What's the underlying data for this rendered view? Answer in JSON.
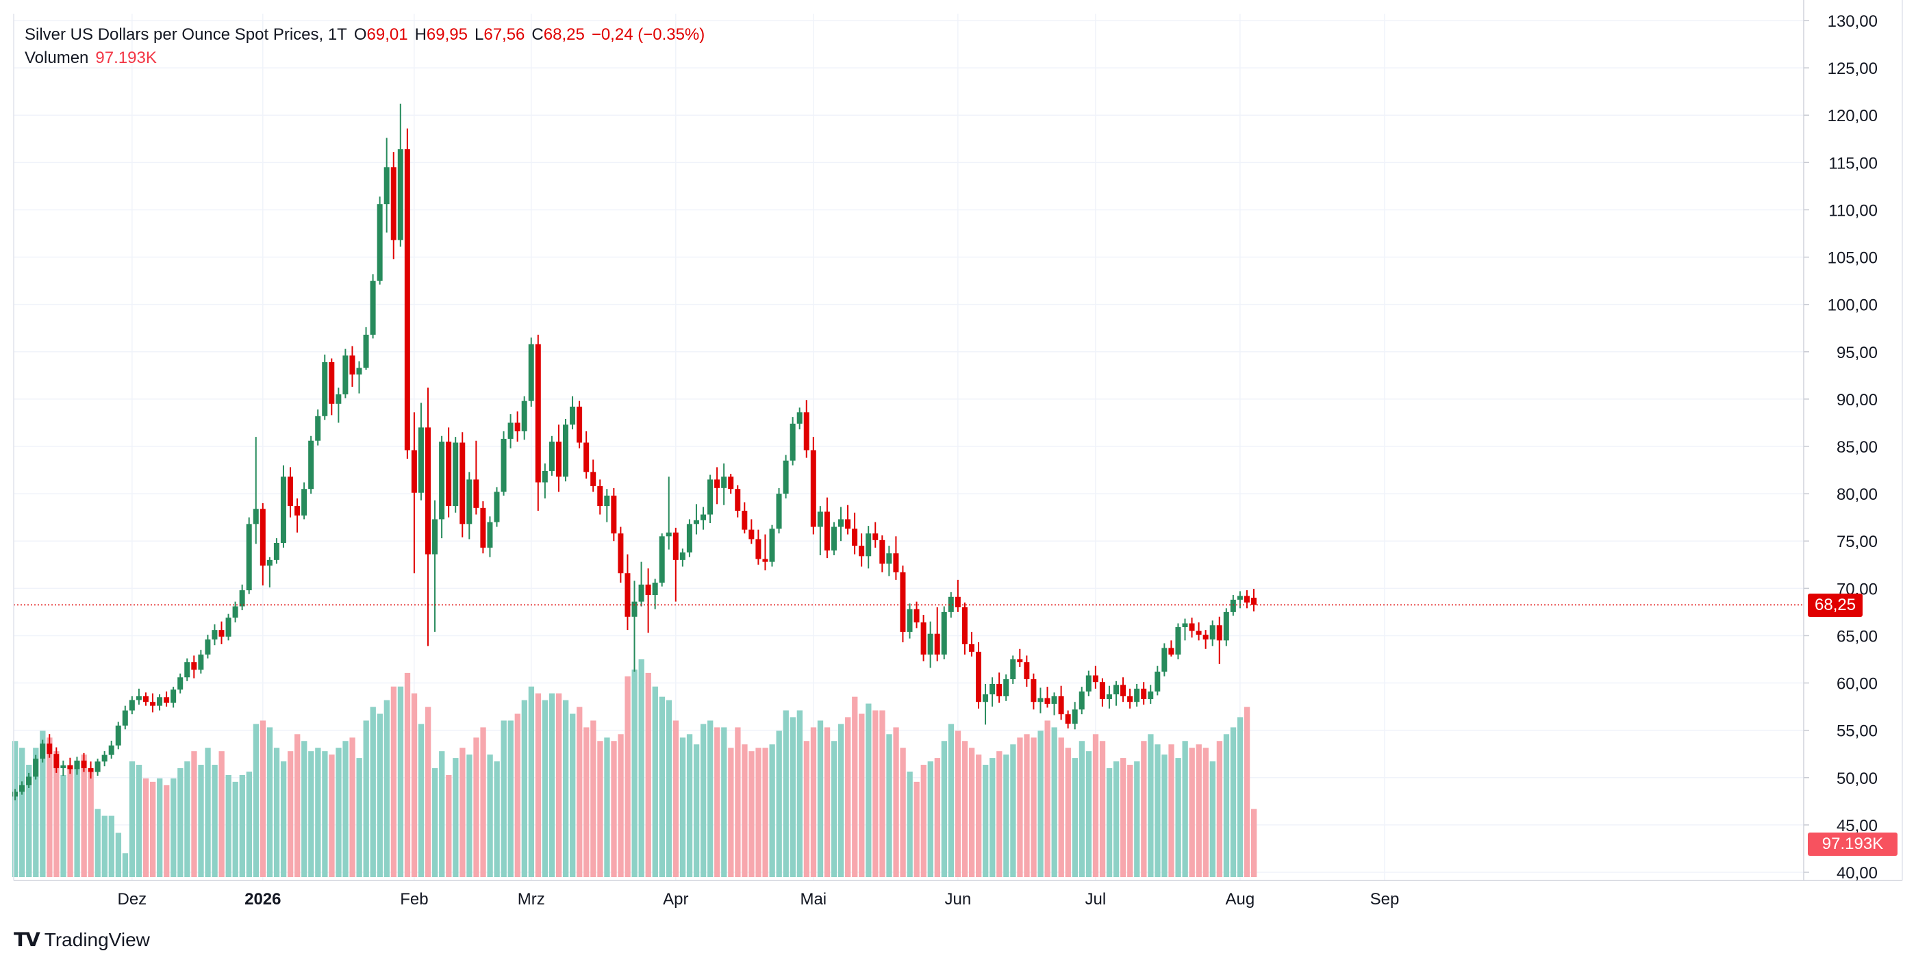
{
  "legend": {
    "symbol": "Silver US Dollars per Ounce Spot Prices, 1T",
    "o_label": "O",
    "o_value": "69,01",
    "h_label": "H",
    "h_value": "69,95",
    "l_label": "L",
    "l_value": "67,56",
    "c_label": "C",
    "c_value": "68,25",
    "change": "−0,24 (−0.35%)",
    "volume_label": "Volumen",
    "volume_value": "97.193K"
  },
  "last_price_label": "68,25",
  "volume_tag_label": "97.193K",
  "brand": {
    "logo": "tradingview-logo-icon",
    "name": "TradingView"
  },
  "colors": {
    "up": "#26a69a",
    "up_candle": "#278b5c",
    "down": "#e00000",
    "up_volume": "#8dd1c6",
    "down_volume": "#f7a7ad",
    "grid": "#f0f3fa",
    "axis_text": "#131722"
  },
  "chart_data": {
    "type": "candlestick",
    "title": "Silver US Dollars per Ounce Spot Prices, 1T",
    "y_ticks": [
      "130,00",
      "125,00",
      "120,00",
      "115,00",
      "110,00",
      "105,00",
      "100,00",
      "95,00",
      "90,00",
      "85,00",
      "80,00",
      "75,00",
      "70,00",
      "65,00",
      "60,00",
      "55,00",
      "50,00",
      "45,00",
      "40,00"
    ],
    "ylim": [
      40,
      130
    ],
    "x_ticks": [
      {
        "label": "Dez",
        "day": 17,
        "bold": false
      },
      {
        "label": "2026",
        "day": 36,
        "bold": true
      },
      {
        "label": "Feb",
        "day": 58,
        "bold": false
      },
      {
        "label": "Mrz",
        "day": 75,
        "bold": false
      },
      {
        "label": "Apr",
        "day": 96,
        "bold": false
      },
      {
        "label": "Mai",
        "day": 116,
        "bold": false
      },
      {
        "label": "Jun",
        "day": 137,
        "bold": false
      },
      {
        "label": "Jul",
        "day": 157,
        "bold": false
      },
      {
        "label": "Aug",
        "day": 178,
        "bold": false
      },
      {
        "label": "Sep",
        "day": 199,
        "bold": false
      }
    ],
    "xlim": [
      0,
      213
    ],
    "last_price": 68.25,
    "volume_last": "97.193K",
    "volume_ylim": [
      0,
      100
    ],
    "candles": [
      [
        48.0,
        48.8,
        47.6,
        48.5,
        40
      ],
      [
        48.5,
        49.6,
        48.2,
        49.2,
        38
      ],
      [
        49.2,
        50.5,
        48.9,
        50.1,
        33
      ],
      [
        50.1,
        52.4,
        49.8,
        52.0,
        38
      ],
      [
        52.0,
        54.0,
        51.6,
        53.6,
        43
      ],
      [
        53.6,
        54.6,
        52.1,
        52.5,
        41
      ],
      [
        52.5,
        53.2,
        50.5,
        51.0,
        37
      ],
      [
        51.0,
        51.8,
        50.2,
        51.3,
        30
      ],
      [
        51.3,
        52.1,
        50.4,
        50.9,
        33
      ],
      [
        50.9,
        52.2,
        50.3,
        51.8,
        34
      ],
      [
        51.8,
        52.6,
        50.6,
        51.0,
        36
      ],
      [
        51.0,
        51.7,
        49.9,
        50.6,
        31
      ],
      [
        50.6,
        52.0,
        50.2,
        51.7,
        20
      ],
      [
        51.7,
        52.8,
        51.2,
        52.4,
        18
      ],
      [
        52.4,
        53.9,
        52.0,
        53.4,
        18
      ],
      [
        53.4,
        55.9,
        53.0,
        55.5,
        13
      ],
      [
        55.5,
        57.6,
        55.1,
        57.1,
        7
      ],
      [
        57.1,
        58.6,
        56.7,
        58.2,
        34
      ],
      [
        58.2,
        59.4,
        57.7,
        58.6,
        33
      ],
      [
        58.6,
        59.0,
        57.6,
        58.0,
        29
      ],
      [
        58.0,
        58.9,
        56.9,
        57.6,
        28
      ],
      [
        57.6,
        58.8,
        57.1,
        58.5,
        29
      ],
      [
        58.5,
        59.1,
        57.5,
        57.9,
        27
      ],
      [
        57.9,
        59.6,
        57.4,
        59.3,
        29
      ],
      [
        59.3,
        61.0,
        58.9,
        60.6,
        32
      ],
      [
        60.6,
        62.6,
        60.2,
        62.2,
        34
      ],
      [
        62.2,
        62.9,
        60.5,
        61.4,
        37
      ],
      [
        61.4,
        63.5,
        61.0,
        63.0,
        33
      ],
      [
        63.0,
        65.1,
        62.6,
        64.6,
        38
      ],
      [
        64.6,
        66.2,
        64.0,
        65.6,
        33
      ],
      [
        65.6,
        66.5,
        64.1,
        64.9,
        37
      ],
      [
        64.9,
        67.3,
        64.5,
        66.9,
        30
      ],
      [
        66.9,
        68.6,
        66.4,
        68.1,
        28
      ],
      [
        68.1,
        70.4,
        67.7,
        69.8,
        30
      ],
      [
        69.8,
        77.5,
        69.4,
        76.8,
        31
      ],
      [
        76.8,
        86.0,
        74.7,
        78.4,
        45
      ],
      [
        78.4,
        79.0,
        70.3,
        72.4,
        46
      ],
      [
        72.4,
        73.3,
        70.1,
        73.0,
        44
      ],
      [
        73.0,
        75.3,
        72.6,
        74.8,
        38
      ],
      [
        74.8,
        83.0,
        74.3,
        81.8,
        34
      ],
      [
        81.8,
        82.8,
        77.5,
        78.7,
        37
      ],
      [
        78.7,
        79.5,
        75.9,
        77.7,
        42
      ],
      [
        77.7,
        81.2,
        77.3,
        80.5,
        40
      ],
      [
        80.5,
        86.1,
        80.0,
        85.6,
        37
      ],
      [
        85.6,
        88.9,
        85.1,
        88.2,
        38
      ],
      [
        88.2,
        94.7,
        87.8,
        93.9,
        37
      ],
      [
        93.9,
        94.3,
        88.3,
        89.5,
        36
      ],
      [
        89.5,
        91.2,
        87.5,
        90.5,
        38
      ],
      [
        90.5,
        95.3,
        90.1,
        94.6,
        40
      ],
      [
        94.6,
        95.6,
        91.3,
        92.6,
        41
      ],
      [
        92.6,
        94.0,
        90.6,
        93.3,
        35
      ],
      [
        93.3,
        97.6,
        93.1,
        96.8,
        46
      ],
      [
        96.8,
        103.2,
        96.4,
        102.5,
        50
      ],
      [
        102.5,
        111.4,
        102.1,
        110.6,
        48
      ],
      [
        110.6,
        117.6,
        107.6,
        114.5,
        52
      ],
      [
        114.5,
        116.1,
        104.8,
        106.8,
        56
      ],
      [
        106.8,
        121.2,
        106.1,
        116.4,
        56
      ],
      [
        116.4,
        118.6,
        83.7,
        84.6,
        60
      ],
      [
        84.6,
        88.6,
        71.6,
        80.1,
        54
      ],
      [
        80.1,
        89.6,
        79.3,
        87.0,
        45
      ],
      [
        87.0,
        91.2,
        63.9,
        73.6,
        50
      ],
      [
        73.6,
        79.3,
        65.4,
        77.3,
        32
      ],
      [
        77.3,
        86.1,
        75.3,
        85.5,
        37
      ],
      [
        85.5,
        87.0,
        77.5,
        78.7,
        30
      ],
      [
        78.7,
        86.0,
        78.0,
        85.4,
        35
      ],
      [
        85.4,
        86.5,
        75.4,
        76.8,
        38
      ],
      [
        76.8,
        82.3,
        75.2,
        81.5,
        36
      ],
      [
        81.5,
        85.6,
        77.8,
        78.5,
        41
      ],
      [
        78.5,
        79.2,
        73.7,
        74.3,
        44
      ],
      [
        74.3,
        77.6,
        73.3,
        77.0,
        36
      ],
      [
        77.0,
        80.7,
        76.5,
        80.2,
        34
      ],
      [
        80.2,
        86.6,
        79.8,
        85.8,
        46
      ],
      [
        85.8,
        88.4,
        84.8,
        87.5,
        46
      ],
      [
        87.5,
        88.7,
        85.5,
        86.6,
        48
      ],
      [
        86.6,
        90.3,
        85.7,
        89.8,
        52
      ],
      [
        89.8,
        96.5,
        89.2,
        95.8,
        56
      ],
      [
        95.8,
        96.8,
        78.2,
        81.2,
        54
      ],
      [
        81.2,
        83.2,
        79.5,
        82.4,
        52
      ],
      [
        82.4,
        86.1,
        81.9,
        85.5,
        54
      ],
      [
        85.5,
        87.3,
        80.2,
        81.8,
        54
      ],
      [
        81.8,
        87.9,
        81.3,
        87.3,
        52
      ],
      [
        87.3,
        90.3,
        86.8,
        89.2,
        48
      ],
      [
        89.2,
        89.8,
        84.8,
        85.4,
        50
      ],
      [
        85.4,
        86.6,
        81.6,
        82.3,
        44
      ],
      [
        82.3,
        83.6,
        80.2,
        80.8,
        46
      ],
      [
        80.8,
        81.5,
        77.8,
        78.7,
        40
      ],
      [
        78.7,
        80.5,
        77.0,
        79.8,
        41
      ],
      [
        79.8,
        80.6,
        75.0,
        75.8,
        40
      ],
      [
        75.8,
        76.5,
        70.6,
        71.6,
        42
      ],
      [
        71.6,
        73.6,
        65.6,
        67.0,
        59
      ],
      [
        67.0,
        70.8,
        61.2,
        68.6,
        61
      ],
      [
        68.6,
        72.8,
        68.1,
        70.4,
        64
      ],
      [
        70.4,
        72.1,
        65.3,
        69.3,
        60
      ],
      [
        69.3,
        71.0,
        67.8,
        70.6,
        56
      ],
      [
        70.6,
        75.8,
        70.2,
        75.5,
        53
      ],
      [
        75.5,
        81.8,
        74.1,
        75.9,
        52
      ],
      [
        75.9,
        76.4,
        68.6,
        73.0,
        46
      ],
      [
        73.0,
        74.2,
        72.3,
        73.8,
        41
      ],
      [
        73.8,
        77.3,
        73.3,
        76.8,
        42
      ],
      [
        76.8,
        78.9,
        75.7,
        77.2,
        39
      ],
      [
        77.2,
        78.6,
        76.2,
        77.8,
        45
      ],
      [
        77.8,
        82.0,
        76.9,
        81.5,
        46
      ],
      [
        81.5,
        82.8,
        78.9,
        80.6,
        44
      ],
      [
        80.6,
        83.2,
        78.8,
        81.8,
        44
      ],
      [
        81.8,
        82.1,
        80.0,
        80.5,
        38
      ],
      [
        80.5,
        80.9,
        77.5,
        78.2,
        44
      ],
      [
        78.2,
        79.1,
        75.8,
        76.2,
        39
      ],
      [
        76.2,
        77.3,
        74.7,
        75.2,
        37
      ],
      [
        75.2,
        76.2,
        72.5,
        73.1,
        38
      ],
      [
        73.1,
        75.7,
        71.9,
        72.8,
        38
      ],
      [
        72.8,
        76.7,
        72.3,
        76.3,
        39
      ],
      [
        76.3,
        80.6,
        75.8,
        80.0,
        43
      ],
      [
        80.0,
        84.1,
        79.5,
        83.5,
        49
      ],
      [
        83.5,
        88.1,
        83.0,
        87.4,
        47
      ],
      [
        87.4,
        89.1,
        86.8,
        88.6,
        49
      ],
      [
        88.6,
        89.9,
        83.8,
        84.6,
        40
      ],
      [
        84.6,
        86.0,
        75.7,
        76.5,
        44
      ],
      [
        76.5,
        78.7,
        73.5,
        78.1,
        46
      ],
      [
        78.1,
        79.6,
        73.2,
        74.0,
        44
      ],
      [
        74.0,
        77.0,
        73.5,
        76.5,
        40
      ],
      [
        76.5,
        78.6,
        75.0,
        77.3,
        45
      ],
      [
        77.3,
        78.8,
        75.7,
        76.3,
        47
      ],
      [
        76.3,
        78.0,
        73.6,
        74.5,
        53
      ],
      [
        74.5,
        75.8,
        72.3,
        73.4,
        48
      ],
      [
        73.4,
        76.6,
        72.1,
        75.8,
        51
      ],
      [
        75.8,
        77.0,
        74.3,
        75.1,
        49
      ],
      [
        75.1,
        75.6,
        71.7,
        72.6,
        49
      ],
      [
        72.6,
        74.5,
        71.3,
        73.7,
        42
      ],
      [
        73.7,
        75.5,
        70.9,
        71.7,
        44
      ],
      [
        71.7,
        72.4,
        64.3,
        65.4,
        38
      ],
      [
        65.4,
        68.4,
        64.7,
        67.8,
        31
      ],
      [
        67.8,
        68.6,
        65.8,
        66.4,
        28
      ],
      [
        66.4,
        67.2,
        62.3,
        63.0,
        33
      ],
      [
        63.0,
        66.5,
        61.6,
        65.2,
        34
      ],
      [
        65.2,
        68.0,
        62.3,
        63.0,
        35
      ],
      [
        63.0,
        68.1,
        62.5,
        67.5,
        40
      ],
      [
        67.5,
        69.6,
        66.9,
        69.1,
        45
      ],
      [
        69.1,
        70.9,
        67.5,
        68.0,
        43
      ],
      [
        68.0,
        68.5,
        63.0,
        64.1,
        40
      ],
      [
        64.1,
        65.4,
        62.8,
        63.3,
        38
      ],
      [
        63.3,
        64.3,
        57.3,
        58.0,
        36
      ],
      [
        58.0,
        59.9,
        55.6,
        58.8,
        33
      ],
      [
        58.8,
        60.6,
        57.5,
        59.9,
        35
      ],
      [
        59.9,
        61.1,
        57.9,
        58.6,
        37
      ],
      [
        58.6,
        60.9,
        58.1,
        60.4,
        36
      ],
      [
        60.4,
        62.9,
        59.9,
        62.5,
        39
      ],
      [
        62.5,
        63.6,
        61.7,
        62.2,
        41
      ],
      [
        62.2,
        62.9,
        59.6,
        60.4,
        42
      ],
      [
        60.4,
        61.0,
        57.2,
        58.0,
        41
      ],
      [
        58.0,
        59.5,
        56.8,
        58.4,
        43
      ],
      [
        58.4,
        59.6,
        57.4,
        57.8,
        46
      ],
      [
        57.8,
        59.0,
        56.6,
        58.6,
        44
      ],
      [
        58.6,
        59.7,
        56.1,
        56.7,
        41
      ],
      [
        56.7,
        57.1,
        55.2,
        55.7,
        38
      ],
      [
        55.7,
        58.0,
        55.1,
        57.2,
        35
      ],
      [
        57.2,
        59.6,
        56.7,
        59.1,
        40
      ],
      [
        59.1,
        61.3,
        58.6,
        60.8,
        37
      ],
      [
        60.8,
        61.8,
        59.4,
        60.1,
        42
      ],
      [
        60.1,
        60.5,
        57.5,
        58.3,
        40
      ],
      [
        58.3,
        59.7,
        57.3,
        58.8,
        32
      ],
      [
        58.8,
        60.2,
        57.6,
        59.8,
        34
      ],
      [
        59.8,
        60.6,
        58.0,
        58.6,
        35
      ],
      [
        58.6,
        59.4,
        57.3,
        58.0,
        33
      ],
      [
        58.0,
        59.9,
        57.5,
        59.4,
        34
      ],
      [
        59.4,
        60.1,
        57.7,
        58.3,
        40
      ],
      [
        58.3,
        59.8,
        57.8,
        59.1,
        42
      ],
      [
        59.1,
        61.8,
        58.7,
        61.2,
        39
      ],
      [
        61.2,
        64.2,
        60.7,
        63.7,
        36
      ],
      [
        63.7,
        64.5,
        62.8,
        63.0,
        39
      ],
      [
        63.0,
        66.3,
        62.5,
        65.9,
        35
      ],
      [
        65.9,
        66.8,
        64.5,
        66.3,
        40
      ],
      [
        66.3,
        66.9,
        64.8,
        65.5,
        38
      ],
      [
        65.5,
        66.4,
        64.5,
        65.1,
        39
      ],
      [
        65.1,
        65.6,
        63.6,
        64.6,
        38
      ],
      [
        64.6,
        66.6,
        63.9,
        66.1,
        34
      ],
      [
        66.1,
        67.0,
        62.0,
        64.5,
        40
      ],
      [
        64.5,
        67.9,
        63.9,
        67.5,
        42
      ],
      [
        67.5,
        69.3,
        67.1,
        68.8,
        44
      ],
      [
        68.8,
        69.7,
        67.9,
        69.2,
        47
      ],
      [
        69.2,
        69.8,
        67.9,
        68.5,
        50
      ],
      [
        69.01,
        69.95,
        67.56,
        68.25,
        20
      ]
    ]
  }
}
